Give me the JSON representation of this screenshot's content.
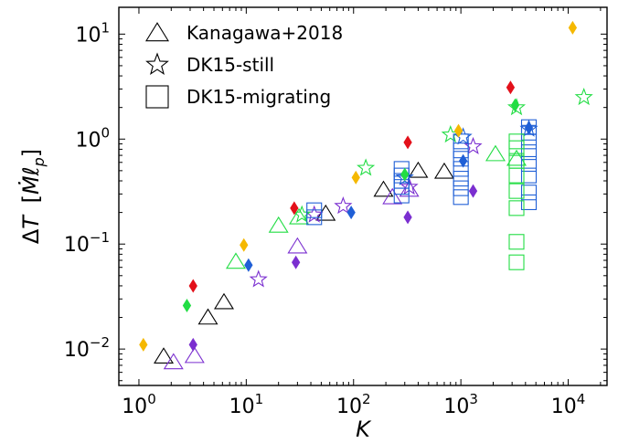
{
  "chart_data": {
    "type": "scatter",
    "xscale": "log",
    "yscale": "log",
    "xlim": [
      0.65,
      23000
    ],
    "ylim": [
      0.0045,
      18
    ],
    "xlabel": "K",
    "ylabel": "ΔT [Ṁℓ_p]",
    "xticks": [
      {
        "value": 1,
        "base": "10",
        "exp": "0"
      },
      {
        "value": 10,
        "base": "10",
        "exp": "1"
      },
      {
        "value": 100,
        "base": "10",
        "exp": "2"
      },
      {
        "value": 1000,
        "base": "10",
        "exp": "3"
      },
      {
        "value": 10000,
        "base": "10",
        "exp": "4"
      }
    ],
    "yticks": [
      {
        "value": 0.01,
        "base": "10",
        "exp": "−2"
      },
      {
        "value": 0.1,
        "base": "10",
        "exp": "−1"
      },
      {
        "value": 1,
        "base": "10",
        "exp": "0"
      },
      {
        "value": 10,
        "base": "10",
        "exp": "1"
      }
    ],
    "legend": {
      "position": "top-left",
      "entries": [
        {
          "marker": "triangle",
          "label": "Kanagawa+2018"
        },
        {
          "marker": "star",
          "label": "DK15-still"
        },
        {
          "marker": "square",
          "label": "DK15-migrating"
        }
      ]
    },
    "colors": {
      "black": "#000000",
      "purple": "#7b2fd0",
      "green": "#22dd44",
      "blue": "#1f5fd6",
      "red": "#e3101a",
      "orange": "#f5b800"
    },
    "series": [
      {
        "marker": "triangle",
        "color": "black",
        "points": [
          [
            1.7,
            0.0085
          ],
          [
            4.4,
            0.02
          ],
          [
            6.2,
            0.028
          ],
          [
            55,
            0.195
          ],
          [
            190,
            0.33
          ],
          [
            400,
            0.5
          ],
          [
            700,
            0.49
          ]
        ]
      },
      {
        "marker": "triangle",
        "color": "purple",
        "points": [
          [
            2.1,
            0.0075
          ],
          [
            3.3,
            0.0086
          ],
          [
            30,
            0.095
          ],
          [
            230,
            0.28
          ],
          [
            330,
            0.33
          ]
        ]
      },
      {
        "marker": "triangle",
        "color": "green",
        "points": [
          [
            8,
            0.068
          ],
          [
            20,
            0.15
          ],
          [
            31,
            0.18
          ],
          [
            2100,
            0.72
          ],
          [
            3300,
            0.65
          ]
        ]
      },
      {
        "marker": "star",
        "color": "purple",
        "points": [
          [
            13,
            0.046
          ],
          [
            43,
            0.19
          ],
          [
            80,
            0.23
          ],
          [
            330,
            0.35
          ],
          [
            1300,
            0.85
          ]
        ]
      },
      {
        "marker": "star",
        "color": "green",
        "points": [
          [
            33,
            0.19
          ],
          [
            130,
            0.53
          ],
          [
            800,
            1.1
          ],
          [
            3300,
            2.0
          ],
          [
            14000,
            2.5
          ]
        ]
      },
      {
        "marker": "star",
        "color": "blue",
        "points": [
          [
            300,
            0.43
          ],
          [
            1050,
            1.05
          ],
          [
            4300,
            1.25
          ]
        ]
      },
      {
        "marker": "square",
        "color": "blue",
        "points": [
          [
            43,
            0.21
          ],
          [
            43,
            0.18
          ],
          [
            280,
            0.29
          ],
          [
            280,
            0.35
          ],
          [
            280,
            0.4
          ],
          [
            280,
            0.45
          ],
          [
            280,
            0.52
          ],
          [
            1000,
            0.28
          ],
          [
            1000,
            0.34
          ],
          [
            1000,
            0.42
          ],
          [
            1000,
            0.52
          ],
          [
            1000,
            0.65
          ],
          [
            1000,
            0.78
          ],
          [
            1000,
            0.95
          ],
          [
            4300,
            0.25
          ],
          [
            4300,
            0.31
          ],
          [
            4300,
            0.45
          ],
          [
            4300,
            0.58
          ],
          [
            4300,
            0.75
          ],
          [
            4300,
            0.95
          ],
          [
            4300,
            1.15
          ],
          [
            4300,
            1.3
          ]
        ]
      },
      {
        "marker": "square",
        "color": "green",
        "points": [
          [
            3300,
            0.067
          ],
          [
            3300,
            0.105
          ],
          [
            3300,
            0.22
          ],
          [
            3300,
            0.32
          ],
          [
            3300,
            0.45
          ],
          [
            3300,
            0.62
          ],
          [
            3300,
            0.82
          ],
          [
            3300,
            0.95
          ]
        ]
      },
      {
        "marker": "diamond",
        "color": "orange",
        "points": [
          [
            1.1,
            0.011
          ],
          [
            9.5,
            0.098
          ],
          [
            105,
            0.43
          ],
          [
            950,
            1.2
          ],
          [
            11000,
            11.5
          ]
        ]
      },
      {
        "marker": "diamond",
        "color": "red",
        "points": [
          [
            3.2,
            0.04
          ],
          [
            28,
            0.22
          ],
          [
            320,
            0.93
          ],
          [
            2900,
            3.1
          ]
        ]
      },
      {
        "marker": "diamond",
        "color": "green",
        "points": [
          [
            2.8,
            0.026
          ],
          [
            300,
            0.46
          ],
          [
            3200,
            2.1
          ]
        ]
      },
      {
        "marker": "diamond",
        "color": "blue",
        "points": [
          [
            10.5,
            0.063
          ],
          [
            95,
            0.2
          ],
          [
            1050,
            0.62
          ],
          [
            4300,
            1.28
          ]
        ]
      },
      {
        "marker": "diamond",
        "color": "purple",
        "points": [
          [
            3.2,
            0.011
          ],
          [
            29,
            0.067
          ],
          [
            320,
            0.18
          ],
          [
            1300,
            0.32
          ]
        ]
      }
    ]
  }
}
